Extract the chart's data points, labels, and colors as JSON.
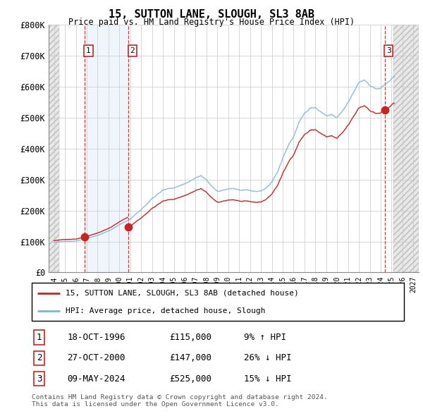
{
  "title": "15, SUTTON LANE, SLOUGH, SL3 8AB",
  "subtitle": "Price paid vs. HM Land Registry's House Price Index (HPI)",
  "ylim": [
    0,
    800000
  ],
  "xlim_start": 1993.5,
  "xlim_end": 2027.5,
  "yticks": [
    0,
    100000,
    200000,
    300000,
    400000,
    500000,
    600000,
    700000,
    800000
  ],
  "ytick_labels": [
    "£0",
    "£100K",
    "£200K",
    "£300K",
    "£400K",
    "£500K",
    "£600K",
    "£700K",
    "£800K"
  ],
  "xticks": [
    1994,
    1995,
    1996,
    1997,
    1998,
    1999,
    2000,
    2001,
    2002,
    2003,
    2004,
    2005,
    2006,
    2007,
    2008,
    2009,
    2010,
    2011,
    2012,
    2013,
    2014,
    2015,
    2016,
    2017,
    2018,
    2019,
    2020,
    2021,
    2022,
    2023,
    2024,
    2025,
    2026,
    2027
  ],
  "hpi_color": "#7ab8d9",
  "price_color": "#cc2222",
  "sale1_year": 1996.79,
  "sale1_price": 115000,
  "sale2_year": 2000.82,
  "sale2_price": 147000,
  "sale3_year": 2024.36,
  "sale3_price": 525000,
  "legend_line1": "15, SUTTON LANE, SLOUGH, SL3 8AB (detached house)",
  "legend_line2": "HPI: Average price, detached house, Slough",
  "table_data": [
    [
      "1",
      "18-OCT-1996",
      "£115,000",
      "9% ↑ HPI"
    ],
    [
      "2",
      "27-OCT-2000",
      "£147,000",
      "26% ↓ HPI"
    ],
    [
      "3",
      "09-MAY-2024",
      "£525,000",
      "15% ↓ HPI"
    ]
  ],
  "footnote1": "Contains HM Land Registry data © Crown copyright and database right 2024.",
  "footnote2": "This data is licensed under the Open Government Licence v3.0.",
  "hatch_left_end": 1994.5,
  "hatch_right_start": 2025.17,
  "shade_between_sales": true,
  "shade_color": "#ddeeff"
}
